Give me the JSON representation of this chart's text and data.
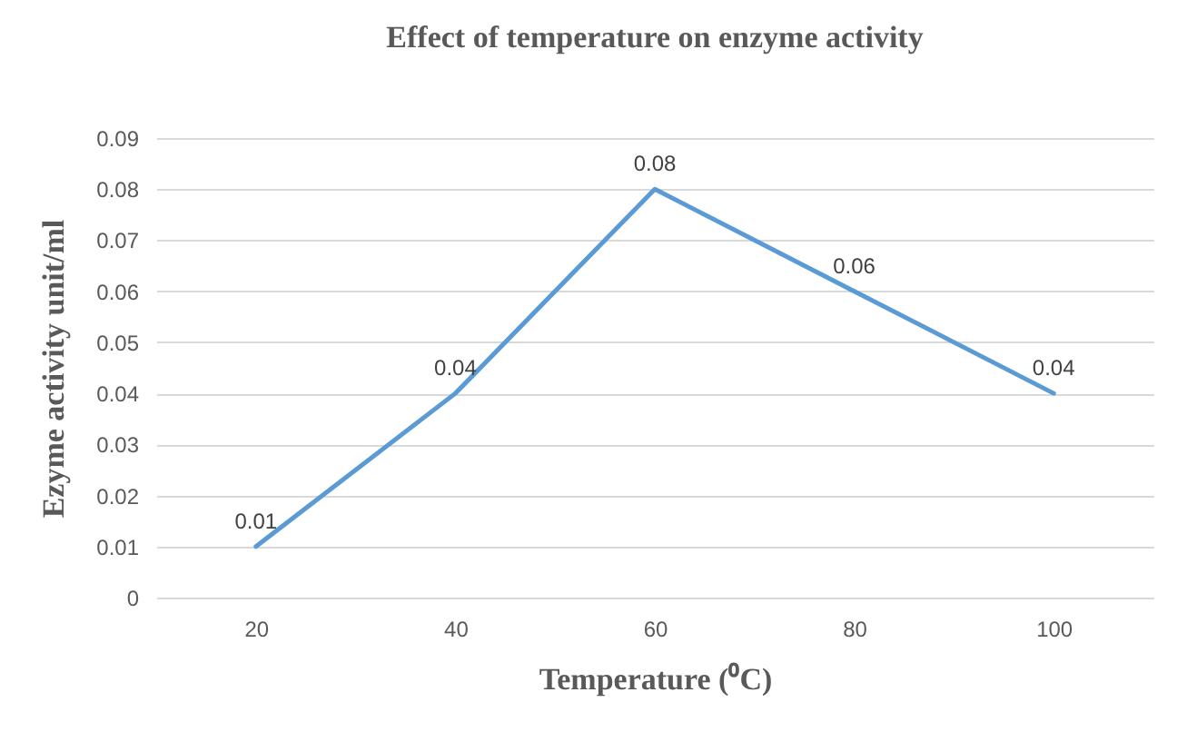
{
  "chart_data": {
    "type": "line",
    "title": "Effect of temperature on enzyme activity",
    "xlabel": "Temperature (⁰C)",
    "ylabel": "Ezyme activity  unit/ml",
    "categories": [
      "20",
      "40",
      "60",
      "80",
      "100"
    ],
    "series": [
      {
        "color": "#5b9bd5",
        "values": [
          0.01,
          0.04,
          0.08,
          0.06,
          0.04
        ]
      }
    ],
    "ylim": [
      0,
      0.09
    ],
    "yticks": [
      0,
      0.01,
      0.02,
      0.03,
      0.04,
      0.05,
      0.06,
      0.07,
      0.08,
      0.09
    ],
    "grid": "y",
    "data_labels": true,
    "marker": "none",
    "line_style": "solid"
  }
}
